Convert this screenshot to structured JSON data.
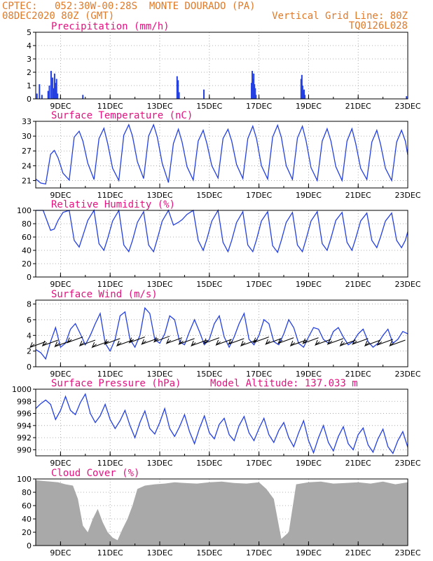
{
  "header": {
    "source": "CPTEC:",
    "location": "052:30W-00:28S  MONTE DOURADO (PA)",
    "run": "08DEC2020 80Z (GMT)",
    "grid_note": "Vertical Grid Line: 80Z",
    "model_code": "TQ0126L028"
  },
  "colors": {
    "header": "#e07a28",
    "title": "#e3127f",
    "line": "#2440e0",
    "cloud": "#a9a9a9",
    "wind_vector": "#000000"
  },
  "chart_data": [
    {
      "type": "bar",
      "title": "Precipitation (mm/h)",
      "ylim": [
        0,
        5
      ],
      "yticks": [
        0,
        1,
        2,
        3,
        4,
        5
      ],
      "xlim": [
        8.0,
        23.0
      ],
      "xticks": [
        "9DEC",
        "11DEC",
        "13DEC",
        "15DEC",
        "17DEC",
        "19DEC",
        "21DEC",
        "23DEC"
      ],
      "xtick_days": [
        9,
        11,
        13,
        15,
        17,
        19,
        21,
        23
      ],
      "x": [
        8.05,
        8.15,
        8.25,
        8.5,
        8.55,
        8.62,
        8.68,
        8.72,
        8.76,
        8.8,
        8.84,
        8.88,
        9.9,
        13.7,
        13.74,
        13.78,
        14.78,
        16.7,
        16.73,
        16.76,
        16.79,
        16.82,
        16.85,
        16.88,
        18.7,
        18.73,
        18.76,
        18.79,
        18.82,
        18.85,
        22.95
      ],
      "values": [
        0.4,
        1.1,
        0.3,
        0.6,
        1.0,
        2.1,
        1.6,
        0.8,
        1.9,
        1.2,
        1.5,
        0.4,
        0.3,
        1.7,
        1.4,
        0.5,
        0.7,
        1.2,
        2.1,
        1.5,
        1.9,
        1.1,
        0.8,
        0.3,
        1.5,
        1.8,
        1.0,
        0.6,
        0.7,
        0.3,
        0.2
      ]
    },
    {
      "type": "line",
      "title": "Surface Temperature (nC)",
      "ylim": [
        19.5,
        33
      ],
      "yticks": [
        21,
        24,
        27,
        30,
        33
      ],
      "xlim": [
        8.0,
        23.0
      ],
      "xticks": [
        "9DEC",
        "11DEC",
        "13DEC",
        "15DEC",
        "17DEC",
        "19DEC",
        "21DEC",
        "23DEC"
      ],
      "xtick_days": [
        9,
        11,
        13,
        15,
        17,
        19,
        21,
        23
      ],
      "x": [
        8.0,
        8.2,
        8.4,
        8.6,
        8.75,
        8.9,
        9.1,
        9.35,
        9.55,
        9.75,
        9.9,
        10.1,
        10.35,
        10.55,
        10.75,
        10.9,
        11.1,
        11.35,
        11.55,
        11.75,
        11.9,
        12.1,
        12.35,
        12.55,
        12.75,
        12.9,
        13.1,
        13.35,
        13.55,
        13.75,
        13.9,
        14.1,
        14.35,
        14.55,
        14.75,
        14.9,
        15.1,
        15.35,
        15.55,
        15.75,
        15.9,
        16.1,
        16.35,
        16.55,
        16.75,
        16.9,
        17.1,
        17.35,
        17.55,
        17.75,
        17.9,
        18.1,
        18.35,
        18.55,
        18.75,
        18.9,
        19.1,
        19.35,
        19.55,
        19.75,
        19.9,
        20.1,
        20.35,
        20.55,
        20.75,
        20.9,
        21.1,
        21.35,
        21.55,
        21.75,
        21.9,
        22.1,
        22.35,
        22.55,
        22.75,
        22.9,
        23.0
      ],
      "values": [
        21.3,
        20.5,
        20.3,
        26.3,
        27.1,
        25.6,
        22.5,
        21.1,
        29.8,
        31.0,
        29.0,
        24.5,
        21.2,
        29.5,
        31.6,
        28.5,
        23.5,
        21.0,
        30.2,
        32.3,
        30.0,
        24.8,
        21.4,
        30.0,
        32.3,
        29.8,
        24.5,
        20.6,
        28.5,
        31.4,
        28.8,
        23.8,
        21.1,
        29.0,
        31.2,
        28.5,
        24.0,
        21.5,
        29.5,
        31.4,
        29.0,
        24.2,
        21.4,
        29.5,
        32.0,
        29.5,
        24.0,
        21.3,
        29.8,
        32.2,
        29.8,
        24.0,
        21.2,
        29.6,
        32.0,
        29.0,
        23.6,
        21.0,
        29.0,
        31.5,
        29.0,
        23.8,
        21.0,
        29.0,
        31.5,
        28.5,
        23.5,
        21.2,
        28.8,
        31.2,
        28.4,
        23.5,
        21.0,
        28.8,
        31.2,
        29.0,
        26.2
      ]
    },
    {
      "type": "line",
      "title": "Relative Humidity (%)",
      "ylim": [
        0,
        100
      ],
      "yticks": [
        0,
        20,
        40,
        60,
        80,
        100
      ],
      "xlim": [
        8.0,
        23.0
      ],
      "xticks": [
        "9DEC",
        "11DEC",
        "13DEC",
        "15DEC",
        "17DEC",
        "19DEC",
        "21DEC",
        "23DEC"
      ],
      "xtick_days": [
        9,
        11,
        13,
        15,
        17,
        19,
        21,
        23
      ],
      "x": [
        8.0,
        8.3,
        8.6,
        8.75,
        8.9,
        9.1,
        9.35,
        9.55,
        9.75,
        9.9,
        10.1,
        10.35,
        10.55,
        10.75,
        10.9,
        11.1,
        11.35,
        11.55,
        11.75,
        11.9,
        12.1,
        12.35,
        12.55,
        12.75,
        12.9,
        13.1,
        13.35,
        13.55,
        13.75,
        13.9,
        14.1,
        14.35,
        14.55,
        14.75,
        14.9,
        15.1,
        15.35,
        15.55,
        15.75,
        15.9,
        16.1,
        16.35,
        16.55,
        16.75,
        16.9,
        17.1,
        17.35,
        17.55,
        17.75,
        17.9,
        18.1,
        18.35,
        18.55,
        18.75,
        18.9,
        19.1,
        19.35,
        19.55,
        19.75,
        19.9,
        20.1,
        20.35,
        20.55,
        20.75,
        20.9,
        21.1,
        21.35,
        21.55,
        21.75,
        21.9,
        22.1,
        22.35,
        22.55,
        22.75,
        22.9,
        23.0
      ],
      "values": [
        100,
        100,
        70,
        72,
        85,
        97,
        100,
        55,
        45,
        62,
        85,
        100,
        50,
        40,
        58,
        84,
        100,
        48,
        38,
        55,
        82,
        98,
        48,
        38,
        57,
        84,
        100,
        78,
        82,
        86,
        94,
        100,
        55,
        40,
        57,
        84,
        100,
        52,
        38,
        55,
        82,
        98,
        48,
        38,
        56,
        84,
        98,
        47,
        37,
        55,
        82,
        97,
        48,
        38,
        57,
        84,
        98,
        50,
        40,
        58,
        85,
        97,
        52,
        40,
        58,
        84,
        96,
        55,
        44,
        60,
        84,
        96,
        55,
        44,
        55,
        68
      ]
    },
    {
      "type": "line",
      "title": "Surface Wind (m/s)",
      "ylim": [
        0,
        8.5
      ],
      "yticks": [
        0,
        2,
        4,
        6,
        8
      ],
      "xlim": [
        8.0,
        23.0
      ],
      "xticks": [
        "9DEC",
        "11DEC",
        "13DEC",
        "15DEC",
        "17DEC",
        "19DEC",
        "21DEC",
        "23DEC"
      ],
      "xtick_days": [
        9,
        11,
        13,
        15,
        17,
        19,
        21,
        23
      ],
      "x": [
        8.0,
        8.2,
        8.4,
        8.6,
        8.8,
        9.0,
        9.2,
        9.4,
        9.6,
        9.8,
        10.0,
        10.2,
        10.4,
        10.6,
        10.8,
        11.0,
        11.2,
        11.4,
        11.6,
        11.8,
        12.0,
        12.2,
        12.4,
        12.6,
        12.8,
        13.0,
        13.2,
        13.4,
        13.6,
        13.8,
        14.0,
        14.2,
        14.4,
        14.6,
        14.8,
        15.0,
        15.2,
        15.4,
        15.6,
        15.8,
        16.0,
        16.2,
        16.4,
        16.6,
        16.8,
        17.0,
        17.2,
        17.4,
        17.6,
        17.8,
        18.0,
        18.2,
        18.4,
        18.6,
        18.8,
        19.0,
        19.2,
        19.4,
        19.6,
        19.8,
        20.0,
        20.2,
        20.4,
        20.6,
        20.8,
        21.0,
        21.2,
        21.4,
        21.6,
        21.8,
        22.0,
        22.2,
        22.4,
        22.6,
        22.8,
        23.0
      ],
      "values": [
        2.2,
        1.8,
        1.0,
        3.2,
        5.0,
        2.5,
        3.0,
        4.8,
        5.5,
        4.2,
        2.8,
        4.0,
        5.5,
        6.8,
        3.0,
        2.0,
        3.5,
        6.5,
        7.0,
        3.5,
        2.5,
        4.0,
        7.5,
        6.8,
        3.5,
        3.0,
        4.2,
        6.5,
        6.0,
        3.2,
        2.8,
        4.5,
        6.0,
        4.5,
        2.8,
        3.5,
        5.5,
        6.5,
        3.8,
        2.5,
        3.8,
        5.5,
        6.8,
        3.5,
        2.8,
        4.0,
        6.0,
        5.5,
        3.2,
        2.8,
        4.2,
        6.0,
        5.0,
        3.0,
        2.5,
        3.8,
        5.0,
        4.8,
        3.5,
        3.0,
        4.5,
        5.0,
        3.8,
        2.8,
        3.2,
        4.2,
        4.8,
        3.2,
        2.5,
        3.0,
        4.0,
        4.8,
        3.0,
        3.5,
        4.5,
        4.2
      ],
      "vector_x": [
        8.4,
        8.9,
        9.4,
        9.9,
        10.4,
        10.9,
        11.4,
        11.9,
        12.4,
        12.9,
        13.4,
        13.9,
        14.4,
        14.9,
        15.4,
        15.9,
        16.4,
        16.9,
        17.4,
        17.9,
        18.4,
        18.9,
        19.4,
        19.9,
        20.4,
        20.9,
        21.4,
        21.9,
        22.4,
        22.9
      ],
      "vector_y": [
        3.2,
        3.4,
        3.3,
        3.8,
        3.4,
        3.2,
        3.6,
        3.4,
        3.8,
        3.6,
        3.9,
        3.7,
        3.6,
        3.4,
        3.7,
        3.5,
        3.6,
        3.4,
        3.8,
        3.6,
        3.7,
        3.4,
        3.7,
        3.5,
        3.6,
        3.4,
        3.6,
        3.4,
        3.5,
        3.4
      ]
    },
    {
      "type": "line",
      "title": "Surface Pressure (hPa)",
      "annotation": "Model Altitude: 137.033 m",
      "ylim": [
        989,
        1000
      ],
      "yticks": [
        990,
        992,
        994,
        996,
        998,
        1000
      ],
      "xlim": [
        8.0,
        23.0
      ],
      "xticks": [
        "9DEC",
        "11DEC",
        "13DEC",
        "15DEC",
        "17DEC",
        "19DEC",
        "21DEC",
        "23DEC"
      ],
      "xtick_days": [
        9,
        11,
        13,
        15,
        17,
        19,
        21,
        23
      ],
      "x": [
        8.0,
        8.2,
        8.4,
        8.6,
        8.8,
        9.0,
        9.2,
        9.4,
        9.6,
        9.8,
        10.0,
        10.2,
        10.4,
        10.6,
        10.8,
        11.0,
        11.2,
        11.4,
        11.6,
        11.8,
        12.0,
        12.2,
        12.4,
        12.6,
        12.8,
        13.0,
        13.2,
        13.4,
        13.6,
        13.8,
        14.0,
        14.2,
        14.4,
        14.6,
        14.8,
        15.0,
        15.2,
        15.4,
        15.6,
        15.8,
        16.0,
        16.2,
        16.4,
        16.6,
        16.8,
        17.0,
        17.2,
        17.4,
        17.6,
        17.8,
        18.0,
        18.2,
        18.4,
        18.6,
        18.8,
        19.0,
        19.2,
        19.4,
        19.6,
        19.8,
        20.0,
        20.2,
        20.4,
        20.6,
        20.8,
        21.0,
        21.2,
        21.4,
        21.6,
        21.8,
        22.0,
        22.2,
        22.4,
        22.6,
        22.8,
        23.0
      ],
      "values": [
        996.8,
        997.6,
        998.2,
        997.5,
        995.0,
        996.5,
        998.8,
        996.5,
        995.8,
        997.8,
        999.2,
        996.0,
        994.5,
        995.6,
        997.5,
        995.0,
        993.5,
        994.8,
        996.5,
        994.0,
        992.0,
        994.5,
        996.4,
        993.5,
        992.6,
        994.5,
        996.8,
        993.5,
        992.2,
        993.8,
        995.8,
        993.0,
        991.0,
        993.5,
        995.6,
        992.8,
        991.8,
        994.2,
        995.2,
        992.5,
        991.5,
        994.0,
        995.5,
        992.8,
        991.5,
        993.5,
        995.2,
        992.5,
        991.2,
        993.2,
        994.5,
        992.0,
        990.5,
        992.8,
        994.8,
        991.5,
        989.5,
        992.0,
        994.0,
        991.2,
        989.8,
        992.2,
        993.8,
        991.0,
        990.0,
        992.5,
        993.6,
        990.8,
        989.6,
        991.8,
        993.4,
        990.5,
        989.4,
        991.5,
        993.0,
        990.4
      ]
    },
    {
      "type": "area",
      "title": "Cloud Cover (%)",
      "ylim": [
        0,
        100
      ],
      "yticks": [
        0,
        20,
        40,
        60,
        80,
        100
      ],
      "xlim": [
        8.0,
        23.0
      ],
      "xticks": [
        "9DEC",
        "11DEC",
        "13DEC",
        "15DEC",
        "17DEC",
        "19DEC",
        "21DEC",
        "23DEC"
      ],
      "xtick_days": [
        9,
        11,
        13,
        15,
        17,
        19,
        21,
        23
      ],
      "x": [
        8.0,
        8.3,
        8.6,
        8.9,
        9.2,
        9.5,
        9.7,
        9.9,
        10.1,
        10.3,
        10.5,
        10.7,
        10.9,
        11.1,
        11.3,
        11.5,
        11.7,
        11.9,
        12.1,
        12.4,
        12.8,
        13.2,
        13.6,
        14.0,
        14.5,
        15.0,
        15.5,
        16.0,
        16.5,
        17.0,
        17.3,
        17.6,
        17.9,
        18.2,
        18.5,
        19.0,
        19.5,
        20.0,
        20.5,
        21.0,
        21.5,
        22.0,
        22.5,
        23.0
      ],
      "values": [
        98,
        97,
        96,
        95,
        92,
        90,
        70,
        30,
        20,
        40,
        55,
        35,
        20,
        12,
        8,
        25,
        40,
        60,
        85,
        90,
        92,
        93,
        95,
        94,
        93,
        95,
        96,
        94,
        93,
        95,
        85,
        70,
        10,
        20,
        92,
        95,
        96,
        93,
        94,
        95,
        93,
        96,
        92,
        95
      ]
    }
  ]
}
